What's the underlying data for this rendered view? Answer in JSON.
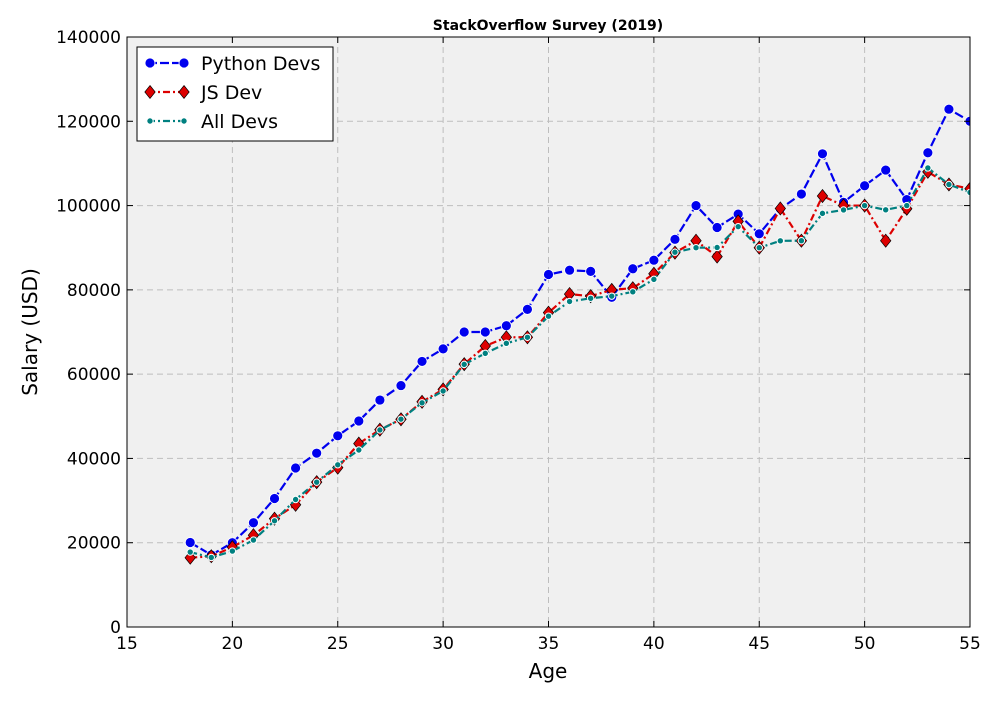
{
  "chart_data": {
    "type": "line",
    "title": "StackOverflow Survey (2019)",
    "xlabel": "Age",
    "ylabel": "Salary (USD)",
    "xlim": [
      15,
      55
    ],
    "ylim": [
      0,
      140000
    ],
    "x_ticks": [
      "15",
      "20",
      "25",
      "30",
      "35",
      "40",
      "45",
      "50",
      "55"
    ],
    "y_ticks": [
      "0",
      "20000",
      "40000",
      "60000",
      "80000",
      "100000",
      "120000",
      "140000"
    ],
    "grid": true,
    "legend_position": "top-left",
    "x": [
      18,
      19,
      20,
      21,
      22,
      23,
      24,
      25,
      26,
      27,
      28,
      29,
      30,
      31,
      32,
      33,
      34,
      35,
      36,
      37,
      38,
      39,
      40,
      41,
      42,
      43,
      44,
      45,
      46,
      47,
      48,
      49,
      50,
      51,
      52,
      53,
      54,
      55
    ],
    "series": [
      {
        "name": "Python Devs",
        "color": "#0000ee",
        "marker": "circle",
        "line_style": "dashed",
        "values": [
          20046,
          17100,
          20000,
          24744,
          30500,
          37732,
          41247,
          45372,
          48876,
          53850,
          57287,
          63016,
          65998,
          70003,
          70000,
          71496,
          75370,
          83640,
          84666,
          84392,
          78254,
          85000,
          87038,
          91991,
          100000,
          94796,
          97962,
          93302,
          99240,
          102736,
          112285,
          100771,
          104708,
          108423,
          101407,
          112542,
          122870,
          120000
        ]
      },
      {
        "name": "JS Dev",
        "color": "#dd0000",
        "marker": "diamond",
        "line_style": "dash-dot",
        "values": [
          16446,
          16791,
          18942,
          21780,
          25704,
          29000,
          34372,
          37810,
          43515,
          46823,
          49293,
          53437,
          56373,
          62375,
          66674,
          68745,
          68746,
          74583,
          79000,
          78508,
          79996,
          80403,
          83820,
          88833,
          91660,
          87892,
          96243,
          90000,
          99313,
          91660,
          102264,
          100000,
          100000,
          91660,
          99240,
          108000,
          105000,
          104000
        ]
      },
      {
        "name": "All Devs",
        "color": "#008080",
        "marker": "point",
        "line_style": "dash-dot",
        "values": [
          17784,
          16500,
          18012,
          20628,
          25206,
          30252,
          34368,
          38496,
          42000,
          46752,
          49320,
          53200,
          56000,
          62316,
          64928,
          67317,
          68748,
          73752,
          77232,
          78000,
          78508,
          79536,
          82488,
          88935,
          90000,
          90056,
          95000,
          90000,
          91633,
          91660,
          98150,
          98964,
          100000,
          98988,
          100000,
          108923,
          105000,
          103117
        ]
      }
    ]
  }
}
